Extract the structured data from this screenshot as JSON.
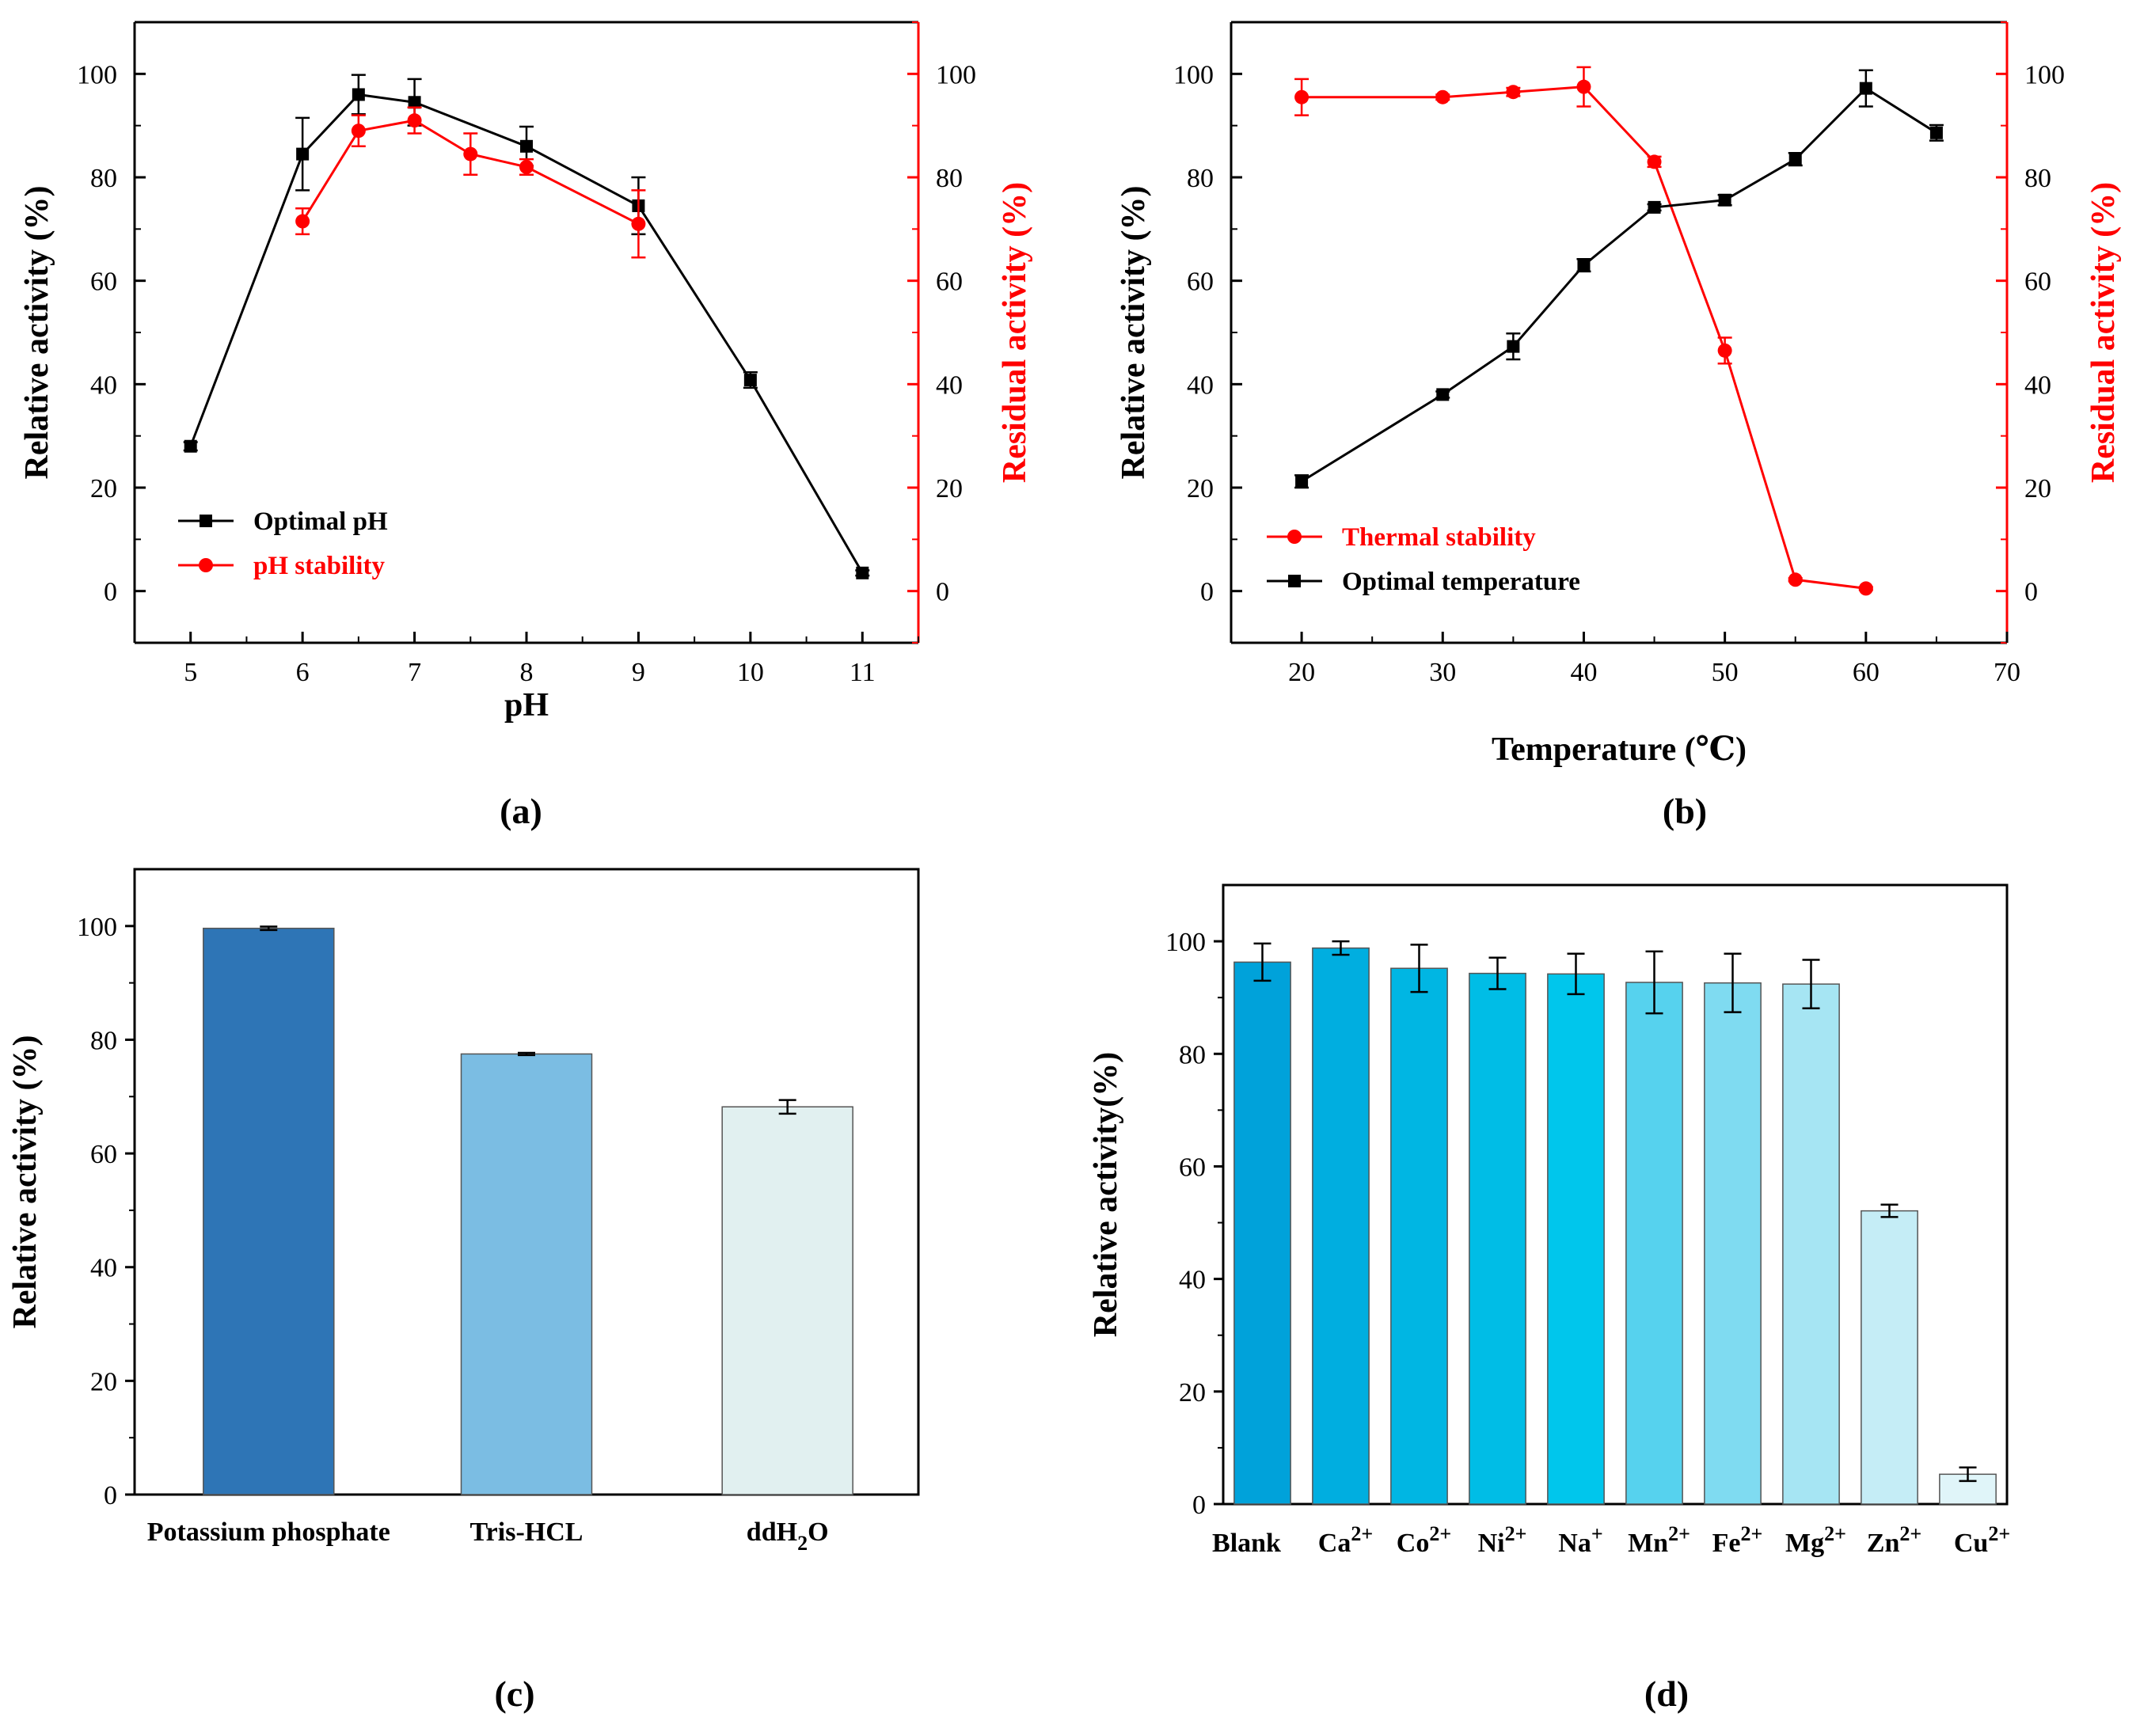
{
  "panels": {
    "a": "(a)",
    "b": "(b)",
    "c": "(c)",
    "d": "(d)"
  },
  "chart_data": [
    {
      "id": "a",
      "type": "line",
      "xlabel": "pH",
      "ylabel": "Relative activity (%)",
      "y2label": "Residual activity (%)",
      "xlim": [
        4.5,
        11.5
      ],
      "ylim": [
        -10,
        110
      ],
      "y2lim": [
        -10,
        110
      ],
      "xticks": [
        5,
        6,
        7,
        8,
        9,
        10,
        11
      ],
      "yticks": [
        0,
        20,
        40,
        60,
        80,
        100
      ],
      "legend_position": "bottom-left",
      "series": [
        {
          "name": "Optimal pH",
          "axis": "left",
          "color": "#000000",
          "marker": "square",
          "x": [
            5,
            6,
            6.5,
            7,
            8,
            9,
            10,
            11
          ],
          "y": [
            28,
            84.5,
            96,
            94.5,
            86,
            74.5,
            40.8,
            3.5
          ],
          "err": [
            0.8,
            7,
            3.8,
            4.5,
            3.8,
            5.5,
            1.5,
            0.5
          ]
        },
        {
          "name": "pH stability",
          "axis": "right",
          "color": "#ff0000",
          "marker": "circle",
          "x": [
            6,
            6.5,
            7,
            7.5,
            8,
            9
          ],
          "y": [
            71.5,
            89,
            91,
            84.5,
            82,
            71
          ],
          "err": [
            2.5,
            3,
            2.5,
            4,
            1.5,
            6.5
          ]
        }
      ]
    },
    {
      "id": "b",
      "type": "line",
      "xlabel": "Temperature (℃)",
      "ylabel": "Relative activity (%)",
      "y2label": "Residual activity (%)",
      "xlim": [
        15,
        70
      ],
      "ylim": [
        -10,
        110
      ],
      "y2lim": [
        -10,
        110
      ],
      "xticks": [
        20,
        30,
        40,
        50,
        60,
        70
      ],
      "yticks": [
        0,
        20,
        40,
        60,
        80,
        100
      ],
      "legend_position": "bottom-left",
      "series": [
        {
          "name": "Thermal stability",
          "axis": "right",
          "color": "#ff0000",
          "marker": "circle",
          "x": [
            20,
            30,
            35,
            40,
            45,
            50,
            55,
            60
          ],
          "y": [
            95.5,
            95.5,
            96.5,
            97.5,
            83,
            46.5,
            2.2,
            0.5
          ],
          "err": [
            3.5,
            0.5,
            0.8,
            3.8,
            1,
            2.5,
            0.3,
            0.3
          ]
        },
        {
          "name": "Optimal temperature",
          "axis": "left",
          "color": "#000000",
          "marker": "square",
          "x": [
            20,
            30,
            35,
            40,
            45,
            50,
            55,
            60,
            65
          ],
          "y": [
            21.2,
            38,
            47.3,
            63,
            74.2,
            75.6,
            83.5,
            97.2,
            88.6
          ],
          "err": [
            1.2,
            0.6,
            2.5,
            1.2,
            0.6,
            1,
            1.2,
            3.5,
            1.5
          ]
        }
      ]
    },
    {
      "id": "c",
      "type": "bar",
      "ylabel": "Relative activity (%)",
      "ylim": [
        0,
        110
      ],
      "yticks": [
        0,
        20,
        40,
        60,
        80,
        100
      ],
      "categories": [
        "Potassium phosphate",
        "Tris-HCL",
        "ddH2O"
      ],
      "tick_labels": [
        {
          "main": "Potassium phosphate"
        },
        {
          "main": "Tris-HCL"
        },
        {
          "main": "ddH",
          "sub": "2",
          "tail": "O"
        }
      ],
      "values": [
        99.6,
        77.5,
        68.2
      ],
      "errors": [
        0.3,
        0.2,
        1.2
      ],
      "colors": [
        "#2e75b6",
        "#7bbde3",
        "#e1f0f0"
      ]
    },
    {
      "id": "d",
      "type": "bar",
      "ylabel": "Relative activity(%)",
      "ylim": [
        0,
        110
      ],
      "yticks": [
        0,
        20,
        40,
        60,
        80,
        100
      ],
      "categories": [
        "Blank",
        "Ca2+",
        "Co2+",
        "Ni2+",
        "Na+",
        "Mn2+",
        "Fe2+",
        "Mg2+",
        "Zn2+",
        "Cu2+"
      ],
      "tick_labels": [
        {
          "main": "Blank"
        },
        {
          "main": "Ca",
          "sup": "2+"
        },
        {
          "main": "Co",
          "sup": "2+"
        },
        {
          "main": "Ni",
          "sup": "2+"
        },
        {
          "main": "Na",
          "sup": "+"
        },
        {
          "main": "Mn",
          "sup": "2+"
        },
        {
          "main": "Fe",
          "sup": "2+"
        },
        {
          "main": "Mg",
          "sup": "2+"
        },
        {
          "main": "Zn",
          "sup": "2+"
        },
        {
          "main": "Cu",
          "sup": "2+"
        }
      ],
      "values": [
        96.3,
        98.8,
        95.2,
        94.3,
        94.2,
        92.7,
        92.6,
        92.4,
        52.1,
        5.3
      ],
      "errors": [
        3.3,
        1.2,
        4.2,
        2.8,
        3.6,
        5.5,
        5.2,
        4.3,
        1.1,
        1.2
      ],
      "colors": [
        "#00a2da",
        "#00aee0",
        "#00b6e3",
        "#00bde6",
        "#00c6ec",
        "#56d2ee",
        "#7fdbf1",
        "#a6e5f3",
        "#c5edf6",
        "#e0f5f9"
      ]
    }
  ]
}
